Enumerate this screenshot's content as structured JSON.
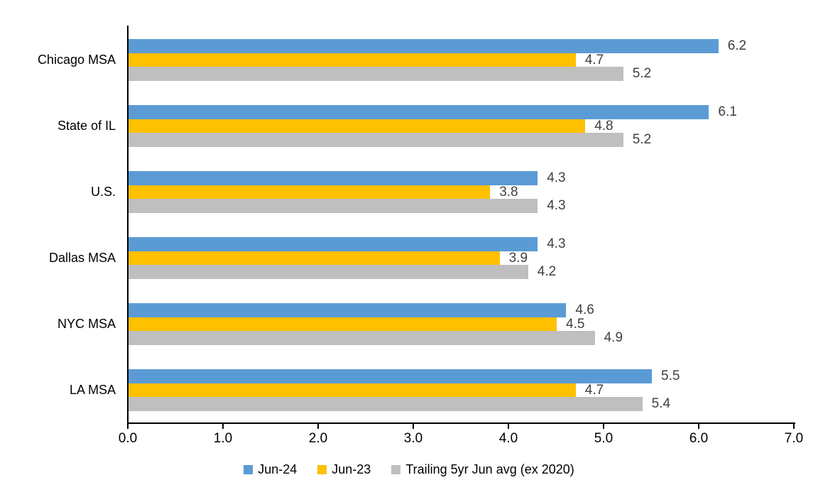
{
  "chart_data": {
    "type": "bar",
    "orientation": "horizontal",
    "title": "",
    "xlabel": "",
    "ylabel": "",
    "categories": [
      "Chicago MSA",
      "State of IL",
      "U.S.",
      "Dallas MSA",
      "NYC MSA",
      "LA MSA"
    ],
    "series": [
      {
        "name": "Jun-24",
        "color": "#5B9BD5",
        "values": [
          6.2,
          6.1,
          4.3,
          4.3,
          4.6,
          5.5
        ]
      },
      {
        "name": "Jun-23",
        "color": "#FFC000",
        "values": [
          4.7,
          4.8,
          3.8,
          3.9,
          4.5,
          4.7
        ]
      },
      {
        "name": "Trailing 5yr Jun avg (ex 2020)",
        "color": "#BFBFBF",
        "values": [
          5.2,
          5.2,
          4.3,
          4.2,
          4.9,
          5.4
        ]
      }
    ],
    "xlim": [
      0.0,
      7.0
    ],
    "x_tick_labels": [
      "0.0",
      "1.0",
      "2.0",
      "3.0",
      "4.0",
      "5.0",
      "6.0",
      "7.0"
    ],
    "grid": false,
    "data_labels": true,
    "data_label_decimals": 1,
    "legend_position": "bottom",
    "colors": {
      "axis": "#000000",
      "data_label_text": "#404040",
      "category_text": "#000000",
      "tick_text": "#000000",
      "background": "#FFFFFF"
    }
  }
}
